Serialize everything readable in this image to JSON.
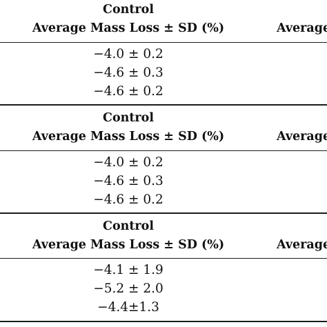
{
  "panels": [
    {
      "header": {
        "col1_group": "Control",
        "col1_label": "Average Mass Loss ± SD (%)",
        "col2_label": "Average"
      },
      "rows": [
        "−4.0 ± 0.2",
        "−4.6 ± 0.3",
        "−4.6 ± 0.2"
      ]
    },
    {
      "header": {
        "col1_group": "Control",
        "col1_label": "Average Mass Loss ± SD (%)",
        "col2_label": "Average"
      },
      "rows": [
        "−4.0 ± 0.2",
        "−4.6 ± 0.3",
        "−4.6 ± 0.2"
      ]
    },
    {
      "header": {
        "col1_group": "Control",
        "col1_label": "Average Mass Loss ± SD (%)",
        "col2_label": "Average"
      },
      "rows": [
        "−4.1 ± 1.9",
        "−5.2 ± 2.0",
        "−4.4±1.3"
      ]
    }
  ]
}
